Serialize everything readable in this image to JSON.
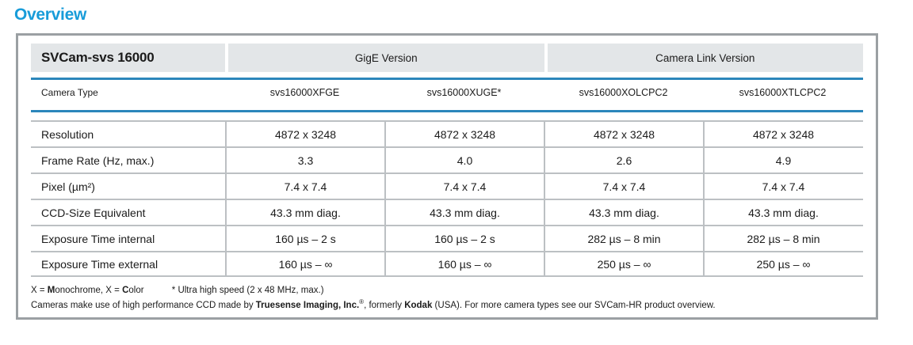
{
  "page": {
    "title": "Overview"
  },
  "colors": {
    "accent_blue": "#189cd9",
    "rule_blue": "#2b86bb",
    "header_cell_gray": "#e3e6e8",
    "grid_line_gray": "#bcc0c3",
    "panel_border_gray": "#9ba0a3"
  },
  "table": {
    "product": "SVCam-svs 16000",
    "groups": [
      {
        "label": "GigE Version"
      },
      {
        "label": "Camera Link Version"
      }
    ],
    "camera_type_label": "Camera Type",
    "camera_types": [
      "svs16000XFGE",
      "svs16000XUGE*",
      "svs16000XOLCPC2",
      "svs16000XTLCPC2"
    ],
    "rows": [
      {
        "label": "Resolution",
        "values": [
          "4872 x 3248",
          "4872 x 3248",
          "4872 x 3248",
          "4872 x 3248"
        ]
      },
      {
        "label": "Frame Rate (Hz, max.)",
        "values": [
          "3.3",
          "4.0",
          "2.6",
          "4.9"
        ]
      },
      {
        "label": "Pixel (µm²)",
        "values": [
          "7.4 x 7.4",
          "7.4 x 7.4",
          "7.4 x 7.4",
          "7.4 x 7.4"
        ]
      },
      {
        "label": "CCD-Size Equivalent",
        "values": [
          "43.3 mm diag.",
          "43.3 mm diag.",
          "43.3 mm diag.",
          "43.3 mm diag."
        ]
      },
      {
        "label": "Exposure Time internal",
        "values": [
          "160 µs – 2 s",
          "160 µs – 2 s",
          "282 µs – 8 min",
          "282 µs – 8 min"
        ]
      },
      {
        "label": "Exposure Time external",
        "values": [
          "160 µs – ∞",
          "160 µs – ∞",
          "250 µs – ∞",
          "250 µs – ∞"
        ]
      }
    ],
    "footnotes": {
      "legend": [
        {
          "text": "X = "
        },
        {
          "text": "M",
          "bold": true
        },
        {
          "text": "onochrome, X = "
        },
        {
          "text": "C",
          "bold": true
        },
        {
          "text": "olor"
        }
      ],
      "speed_note": "* Ultra high speed (2 x 48 MHz, max.)",
      "ccd_note": [
        {
          "text": "Cameras make use of high performance CCD made by "
        },
        {
          "text": "Truesense Imaging, Inc.",
          "bold": true
        },
        {
          "text": "®",
          "sup": true
        },
        {
          "text": ", formerly "
        },
        {
          "text": "Kodak",
          "bold": true
        },
        {
          "text": " (USA). For more camera types see our SVCam-HR product overview."
        }
      ]
    }
  }
}
